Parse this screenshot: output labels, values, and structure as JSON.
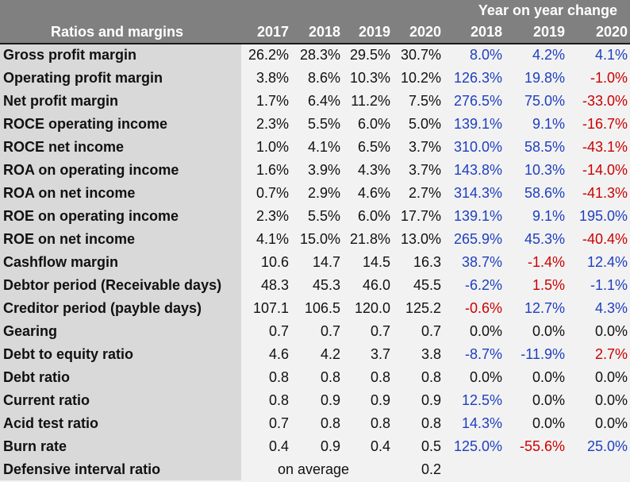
{
  "header": {
    "label": "Ratios and margins",
    "group_title": "Year on year change",
    "years": [
      "2017",
      "2018",
      "2019",
      "2020"
    ],
    "change_years": [
      "2018",
      "2019",
      "2020"
    ]
  },
  "colors": {
    "positive": "#1f3fbf",
    "negative": "#cc0000",
    "header_bg": "#808080",
    "label_bg": "#d9d9d9"
  },
  "rows": [
    {
      "label": "Gross profit margin",
      "values": [
        "26.2%",
        "28.3%",
        "29.5%",
        "30.7%"
      ],
      "changes": [
        "8.0%",
        "4.2%",
        "4.1%"
      ],
      "tones": [
        "pos",
        "pos",
        "pos"
      ]
    },
    {
      "label": "Operating profit margin",
      "values": [
        "3.8%",
        "8.6%",
        "10.3%",
        "10.2%"
      ],
      "changes": [
        "126.3%",
        "19.8%",
        "-1.0%"
      ],
      "tones": [
        "pos",
        "pos",
        "neg"
      ]
    },
    {
      "label": "Net profit margin",
      "values": [
        "1.7%",
        "6.4%",
        "11.2%",
        "7.5%"
      ],
      "changes": [
        "276.5%",
        "75.0%",
        "-33.0%"
      ],
      "tones": [
        "pos",
        "pos",
        "neg"
      ]
    },
    {
      "label": "ROCE operating income",
      "values": [
        "2.3%",
        "5.5%",
        "6.0%",
        "5.0%"
      ],
      "changes": [
        "139.1%",
        "9.1%",
        "-16.7%"
      ],
      "tones": [
        "pos",
        "pos",
        "neg"
      ]
    },
    {
      "label": "ROCE net income",
      "values": [
        "1.0%",
        "4.1%",
        "6.5%",
        "3.7%"
      ],
      "changes": [
        "310.0%",
        "58.5%",
        "-43.1%"
      ],
      "tones": [
        "pos",
        "pos",
        "neg"
      ]
    },
    {
      "label": "ROA on operating income",
      "values": [
        "1.6%",
        "3.9%",
        "4.3%",
        "3.7%"
      ],
      "changes": [
        "143.8%",
        "10.3%",
        "-14.0%"
      ],
      "tones": [
        "pos",
        "pos",
        "neg"
      ]
    },
    {
      "label": "ROA on net income",
      "values": [
        "0.7%",
        "2.9%",
        "4.6%",
        "2.7%"
      ],
      "changes": [
        "314.3%",
        "58.6%",
        "-41.3%"
      ],
      "tones": [
        "pos",
        "pos",
        "neg"
      ]
    },
    {
      "label": "ROE on operating income",
      "values": [
        "2.3%",
        "5.5%",
        "6.0%",
        "17.7%"
      ],
      "changes": [
        "139.1%",
        "9.1%",
        "195.0%"
      ],
      "tones": [
        "pos",
        "pos",
        "pos"
      ]
    },
    {
      "label": "ROE on net income",
      "values": [
        "4.1%",
        "15.0%",
        "21.8%",
        "13.0%"
      ],
      "changes": [
        "265.9%",
        "45.3%",
        "-40.4%"
      ],
      "tones": [
        "pos",
        "pos",
        "neg"
      ]
    },
    {
      "label": "Cashflow margin",
      "values": [
        "10.6",
        "14.7",
        "14.5",
        "16.3"
      ],
      "changes": [
        "38.7%",
        "-1.4%",
        "12.4%"
      ],
      "tones": [
        "pos",
        "neg",
        "pos"
      ]
    },
    {
      "label": "Debtor period (Receivable days)",
      "values": [
        "48.3",
        "45.3",
        "46.0",
        "45.5"
      ],
      "changes": [
        "-6.2%",
        "1.5%",
        "-1.1%"
      ],
      "tones": [
        "pos",
        "neg",
        "pos"
      ]
    },
    {
      "label": "Creditor period (payble days)",
      "values": [
        "107.1",
        "106.5",
        "120.0",
        "125.2"
      ],
      "changes": [
        "-0.6%",
        "12.7%",
        "4.3%"
      ],
      "tones": [
        "neg",
        "pos",
        "pos"
      ]
    },
    {
      "label": "Gearing",
      "values": [
        "0.7",
        "0.7",
        "0.7",
        "0.7"
      ],
      "changes": [
        "0.0%",
        "0.0%",
        "0.0%"
      ],
      "tones": [
        "neutral",
        "neutral",
        "neutral"
      ]
    },
    {
      "label": "Debt to equity ratio",
      "values": [
        "4.6",
        "4.2",
        "3.7",
        "3.8"
      ],
      "changes": [
        "-8.7%",
        "-11.9%",
        "2.7%"
      ],
      "tones": [
        "pos",
        "pos",
        "neg"
      ]
    },
    {
      "label": "Debt ratio",
      "values": [
        "0.8",
        "0.8",
        "0.8",
        "0.8"
      ],
      "changes": [
        "0.0%",
        "0.0%",
        "0.0%"
      ],
      "tones": [
        "neutral",
        "neutral",
        "neutral"
      ]
    },
    {
      "label": "Current ratio",
      "values": [
        "0.8",
        "0.9",
        "0.9",
        "0.9"
      ],
      "changes": [
        "12.5%",
        "0.0%",
        "0.0%"
      ],
      "tones": [
        "pos",
        "neutral",
        "neutral"
      ]
    },
    {
      "label": "Acid test ratio",
      "values": [
        "0.7",
        "0.8",
        "0.8",
        "0.8"
      ],
      "changes": [
        "14.3%",
        "0.0%",
        "0.0%"
      ],
      "tones": [
        "pos",
        "neutral",
        "neutral"
      ]
    },
    {
      "label": "Burn rate",
      "values": [
        "0.4",
        "0.9",
        "0.4",
        "0.5"
      ],
      "changes": [
        "125.0%",
        "-55.6%",
        "25.0%"
      ],
      "tones": [
        "pos",
        "neg",
        "pos"
      ]
    }
  ],
  "last_row": {
    "label": "Defensive interval ratio",
    "note": "on average",
    "value": "0.2"
  }
}
